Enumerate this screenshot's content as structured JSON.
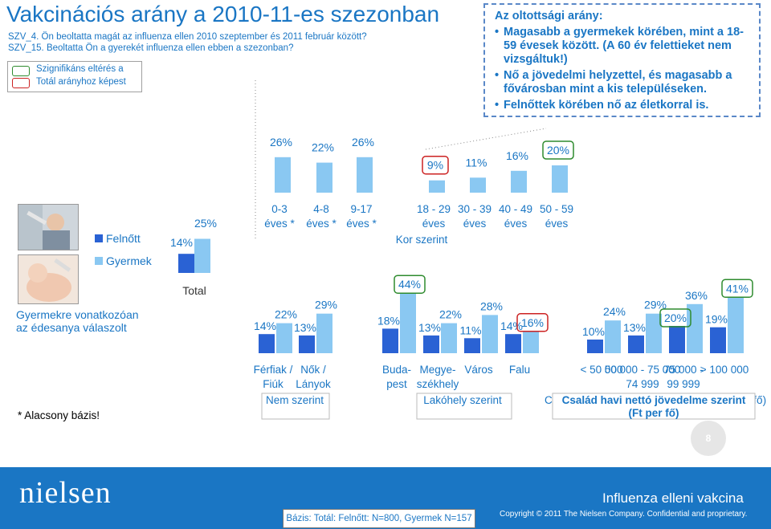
{
  "title": "Vakcinációs arány a 2010-11-es szezonban",
  "questions": [
    "SZV_4.  Ön beoltatta magát az influenza ellen 2010 szeptember és 2011 február között?",
    "SZV_15.  Beoltatta Ön a gyerekét influenza ellen ebben a szezonban?"
  ],
  "significance_legend": {
    "line1": "Szignifikáns eltérés a",
    "line2": "Totál arányhoz képest",
    "higher_color": "#2e8b2e",
    "lower_color": "#cc2222"
  },
  "note": {
    "heading": "Az oltottsági arány:",
    "bullets": [
      "Magasabb a gyermekek körében, mint a 18-59 évesek között. (A 60 év felettieket nem vizsgáltuk!)",
      "Nő a jövedelmi helyzettel, és magasabb a fővárosban mint a kis településeken.",
      "Felnőttek körében nő az életkorral is."
    ]
  },
  "series_legend": {
    "adult": "Felnőtt",
    "child": "Gyermek",
    "adult_color": "#2a62d4",
    "child_color": "#8ac8f2"
  },
  "child_note": "Gyermekre vonatkozóan az édesanya válaszolt",
  "low_base_note": "* Alacsony bázis!",
  "base_text": "Bázis: Totál: Felnőtt: N=800, Gyermek N=157",
  "chart_data": [
    {
      "type": "bar",
      "title": "Kor szerint",
      "categories": [
        {
          "l1": "0-3",
          "l2": "éves *"
        },
        {
          "l1": "4-8",
          "l2": "éves *"
        },
        {
          "l1": "9-17",
          "l2": "éves *"
        },
        {
          "l1": "18 - 29",
          "l2": "éves"
        },
        {
          "l1": "30 - 39",
          "l2": "éves"
        },
        {
          "l1": "40 - 49",
          "l2": "éves"
        },
        {
          "l1": "50 - 59",
          "l2": "éves"
        }
      ],
      "series": [
        {
          "name": "Gyermek / Felnőtt",
          "values": [
            26,
            22,
            26,
            9,
            11,
            16,
            20
          ]
        }
      ],
      "significance": [
        "none",
        "none",
        "none",
        "lower",
        "none",
        "none",
        "higher"
      ],
      "value_labels": [
        "26%",
        "22%",
        "26%",
        "9%",
        "11%",
        "16%",
        "20%"
      ]
    },
    {
      "type": "bar",
      "title": "",
      "category": "Total",
      "series": [
        {
          "name": "Felnőtt",
          "values": [
            14
          ]
        },
        {
          "name": "Gyermek",
          "values": [
            25
          ]
        }
      ],
      "value_labels": {
        "adult": [
          "14%"
        ],
        "child": [
          "25%"
        ]
      }
    },
    {
      "type": "bar",
      "title": "Nem szerint",
      "categories": [
        {
          "l1": "Férfiak /",
          "l2": "Fiúk"
        },
        {
          "l1": "Nők /",
          "l2": "Lányok"
        }
      ],
      "series": [
        {
          "name": "Felnőtt",
          "values": [
            14,
            13
          ]
        },
        {
          "name": "Gyermek",
          "values": [
            22,
            29
          ]
        }
      ],
      "value_labels": {
        "adult": [
          "14%",
          "13%"
        ],
        "child": [
          "22%",
          "29%"
        ]
      }
    },
    {
      "type": "bar",
      "title": "Lakóhely szerint",
      "categories": [
        {
          "l1": "Buda-",
          "l2": "pest"
        },
        {
          "l1": "Megye-",
          "l2": "székhely"
        },
        {
          "l1": "Város",
          "l2": ""
        },
        {
          "l1": "Falu",
          "l2": ""
        }
      ],
      "series": [
        {
          "name": "Felnőtt",
          "values": [
            18,
            13,
            11,
            14
          ]
        },
        {
          "name": "Gyermek",
          "values": [
            44,
            22,
            28,
            16
          ]
        }
      ],
      "significance": {
        "adult": [
          "none",
          "none",
          "none",
          "none"
        ],
        "child": [
          "higher",
          "none",
          "none",
          "lower"
        ]
      },
      "value_labels": {
        "adult": [
          "18%",
          "13%",
          "11%",
          "14%"
        ],
        "child": [
          "44%",
          "22%",
          "28%",
          "16%"
        ]
      }
    },
    {
      "type": "bar",
      "title": "Család havi nettó jövedelme szerint (Ft per fő)",
      "categories": [
        {
          "l1": "< 50 000",
          "l2": ""
        },
        {
          "l1": "50 000 - 75 000",
          "l2": "74 999"
        },
        {
          "l1": "75 000 -",
          "l2": "99 999"
        },
        {
          "l1": "> 100 000",
          "l2": ""
        }
      ],
      "series": [
        {
          "name": "Felnőtt",
          "values": [
            10,
            13,
            20,
            19
          ]
        },
        {
          "name": "Gyermek",
          "values": [
            24,
            29,
            36,
            41
          ]
        }
      ],
      "significance": {
        "adult": [
          "none",
          "none",
          "higher",
          "none"
        ],
        "child": [
          "none",
          "none",
          "none",
          "higher"
        ]
      },
      "value_labels": {
        "adult": [
          "10%",
          "13%",
          "20%",
          "19%"
        ],
        "child": [
          "24%",
          "29%",
          "36%",
          "41%"
        ]
      }
    }
  ],
  "page_number": "8",
  "footer": {
    "logo": "nielsen",
    "topic": "Influenza elleni vakcina",
    "copyright": "Copyright © 2011 The Nielsen Company. Confidential and proprietary."
  }
}
